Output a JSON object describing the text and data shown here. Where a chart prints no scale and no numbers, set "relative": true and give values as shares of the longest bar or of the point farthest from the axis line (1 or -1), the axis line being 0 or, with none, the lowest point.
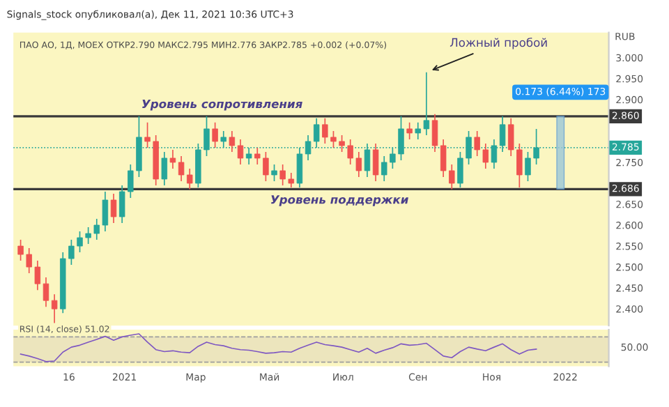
{
  "chart_data": [
    {
      "type": "candlestick",
      "title": "Signals_stock опубликовал(а), Дек 11, 2021 10:36 UTC+3",
      "subtitle": "ПАО АО, 1Д, MOEX ОТКР2.790 МАКС2.795 МИН2.776 ЗАКР2.785 +0.002 (+0.07%)",
      "ylabel": "RUB",
      "x": [
        "2020-10-07",
        "2020-10-14",
        "2020-10-21",
        "2020-10-28",
        "2020-11-04",
        "2020-11-11",
        "2020-11-18",
        "2020-11-25",
        "2020-12-02",
        "2020-12-09",
        "2020-12-16",
        "2020-12-23",
        "2020-12-30",
        "2021-01-06",
        "2021-01-13",
        "2021-01-20",
        "2021-01-27",
        "2021-02-03",
        "2021-02-10",
        "2021-02-17",
        "2021-02-24",
        "2021-03-03",
        "2021-03-10",
        "2021-03-17",
        "2021-03-24",
        "2021-03-31",
        "2021-04-07",
        "2021-04-14",
        "2021-04-21",
        "2021-04-28",
        "2021-05-05",
        "2021-05-12",
        "2021-05-19",
        "2021-05-26",
        "2021-06-02",
        "2021-06-09",
        "2021-06-16",
        "2021-06-23",
        "2021-06-30",
        "2021-07-07",
        "2021-07-14",
        "2021-07-21",
        "2021-07-28",
        "2021-08-04",
        "2021-08-11",
        "2021-08-18",
        "2021-08-25",
        "2021-09-01",
        "2021-09-08",
        "2021-09-15",
        "2021-09-22",
        "2021-09-29",
        "2021-10-06",
        "2021-10-13",
        "2021-10-20",
        "2021-10-27",
        "2021-11-03",
        "2021-11-10",
        "2021-11-17",
        "2021-11-24",
        "2021-12-01",
        "2021-12-08"
      ],
      "ohlc": [
        [
          2.55,
          2.565,
          2.515,
          2.53
        ],
        [
          2.53,
          2.545,
          2.485,
          2.5
        ],
        [
          2.5,
          2.515,
          2.445,
          2.46
        ],
        [
          2.46,
          2.475,
          2.405,
          2.42
        ],
        [
          2.42,
          2.435,
          2.366,
          2.4
        ],
        [
          2.4,
          2.535,
          2.39,
          2.52
        ],
        [
          2.52,
          2.565,
          2.505,
          2.55
        ],
        [
          2.55,
          2.585,
          2.535,
          2.57
        ],
        [
          2.57,
          2.595,
          2.555,
          2.58
        ],
        [
          2.58,
          2.615,
          2.565,
          2.6
        ],
        [
          2.6,
          2.68,
          2.585,
          2.66
        ],
        [
          2.66,
          2.675,
          2.605,
          2.62
        ],
        [
          2.62,
          2.695,
          2.605,
          2.68
        ],
        [
          2.68,
          2.745,
          2.665,
          2.73
        ],
        [
          2.73,
          2.86,
          2.715,
          2.81
        ],
        [
          2.81,
          2.845,
          2.785,
          2.8
        ],
        [
          2.8,
          2.815,
          2.695,
          2.71
        ],
        [
          2.71,
          2.775,
          2.695,
          2.76
        ],
        [
          2.76,
          2.78,
          2.735,
          2.75
        ],
        [
          2.75,
          2.765,
          2.705,
          2.72
        ],
        [
          2.72,
          2.735,
          2.686,
          2.7
        ],
        [
          2.7,
          2.795,
          2.69,
          2.78
        ],
        [
          2.78,
          2.86,
          2.765,
          2.83
        ],
        [
          2.83,
          2.845,
          2.785,
          2.8
        ],
        [
          2.8,
          2.825,
          2.785,
          2.81
        ],
        [
          2.81,
          2.825,
          2.775,
          2.79
        ],
        [
          2.79,
          2.805,
          2.745,
          2.76
        ],
        [
          2.76,
          2.785,
          2.745,
          2.77
        ],
        [
          2.77,
          2.785,
          2.745,
          2.76
        ],
        [
          2.76,
          2.775,
          2.705,
          2.72
        ],
        [
          2.72,
          2.745,
          2.705,
          2.73
        ],
        [
          2.73,
          2.745,
          2.695,
          2.71
        ],
        [
          2.71,
          2.725,
          2.69,
          2.7
        ],
        [
          2.7,
          2.785,
          2.69,
          2.77
        ],
        [
          2.77,
          2.815,
          2.755,
          2.8
        ],
        [
          2.8,
          2.855,
          2.785,
          2.84
        ],
        [
          2.84,
          2.855,
          2.795,
          2.81
        ],
        [
          2.81,
          2.825,
          2.785,
          2.8
        ],
        [
          2.8,
          2.815,
          2.775,
          2.79
        ],
        [
          2.79,
          2.805,
          2.745,
          2.76
        ],
        [
          2.76,
          2.775,
          2.715,
          2.73
        ],
        [
          2.73,
          2.795,
          2.715,
          2.78
        ],
        [
          2.78,
          2.795,
          2.705,
          2.72
        ],
        [
          2.72,
          2.765,
          2.705,
          2.75
        ],
        [
          2.75,
          2.785,
          2.735,
          2.77
        ],
        [
          2.77,
          2.86,
          2.755,
          2.83
        ],
        [
          2.83,
          2.845,
          2.805,
          2.82
        ],
        [
          2.82,
          2.845,
          2.805,
          2.83
        ],
        [
          2.83,
          2.965,
          2.815,
          2.85
        ],
        [
          2.85,
          2.865,
          2.775,
          2.79
        ],
        [
          2.79,
          2.805,
          2.715,
          2.73
        ],
        [
          2.73,
          2.745,
          2.686,
          2.7
        ],
        [
          2.7,
          2.775,
          2.69,
          2.76
        ],
        [
          2.76,
          2.825,
          2.745,
          2.81
        ],
        [
          2.81,
          2.825,
          2.765,
          2.78
        ],
        [
          2.78,
          2.795,
          2.735,
          2.75
        ],
        [
          2.75,
          2.805,
          2.735,
          2.79
        ],
        [
          2.79,
          2.86,
          2.775,
          2.84
        ],
        [
          2.84,
          2.855,
          2.765,
          2.78
        ],
        [
          2.78,
          2.795,
          2.69,
          2.72
        ],
        [
          2.72,
          2.775,
          2.705,
          2.76
        ],
        [
          2.76,
          2.83,
          2.745,
          2.785
        ]
      ],
      "colors": [
        "#ef5350",
        "#ef5350",
        "#ef5350",
        "#ef5350",
        "#ef5350",
        "#26a69a",
        "#26a69a",
        "#26a69a",
        "#26a69a",
        "#26a69a",
        "#26a69a",
        "#ef5350",
        "#26a69a",
        "#26a69a",
        "#26a69a",
        "#ef5350",
        "#ef5350",
        "#26a69a",
        "#ef5350",
        "#ef5350",
        "#ef5350",
        "#26a69a",
        "#26a69a",
        "#ef5350",
        "#26a69a",
        "#ef5350",
        "#ef5350",
        "#26a69a",
        "#ef5350",
        "#ef5350",
        "#26a69a",
        "#ef5350",
        "#ef5350",
        "#26a69a",
        "#26a69a",
        "#26a69a",
        "#ef5350",
        "#ef5350",
        "#ef5350",
        "#ef5350",
        "#ef5350",
        "#26a69a",
        "#ef5350",
        "#26a69a",
        "#26a69a",
        "#26a69a",
        "#ef5350",
        "#26a69a",
        "#26a69a",
        "#ef5350",
        "#ef5350",
        "#ef5350",
        "#26a69a",
        "#26a69a",
        "#ef5350",
        "#ef5350",
        "#26a69a",
        "#26a69a",
        "#ef5350",
        "#ef5350",
        "#26a69a",
        "#26a69a"
      ],
      "xlim": [
        "2020-10-01",
        "2022-02-06"
      ],
      "xticks": [
        {
          "value": "2020-11-16",
          "label": null
        },
        {
          "value": "2021-01-01",
          "label": null
        },
        {
          "value": "2021-03-01",
          "label": null
        },
        {
          "value": "2021-05-01",
          "label": null
        },
        {
          "value": "2021-07-01",
          "label": null
        },
        {
          "value": "2021-09-01",
          "label": null
        },
        {
          "value": "2021-11-01",
          "label": null
        },
        {
          "value": "2022-01-01",
          "label": null
        }
      ],
      "ylim": [
        2.36,
        3.06
      ],
      "yticks": [
        {
          "value": 2.4,
          "label": "2.400"
        },
        {
          "value": 2.45,
          "label": "2.450"
        },
        {
          "value": 2.5,
          "label": "2.500"
        },
        {
          "value": 2.55,
          "label": "2.550"
        },
        {
          "value": 2.6,
          "label": "2.600"
        },
        {
          "value": 2.65,
          "label": "2.650"
        },
        {
          "value": 2.75,
          "label": "2.750"
        },
        {
          "value": 2.9,
          "label": "2.900"
        },
        {
          "value": 2.95,
          "label": "2.950"
        },
        {
          "value": 3.0,
          "label": "3.000"
        }
      ],
      "tick_labels": "y",
      "grid": false,
      "ref_lines": [
        {
          "axis": "y",
          "value": 2.86,
          "label": "2.860",
          "color": "#3a3a3a"
        },
        {
          "axis": "y",
          "value": 2.785,
          "label": "2.785",
          "color": "#26a69a",
          "line_style": "dotted"
        },
        {
          "axis": "y",
          "value": 2.686,
          "label": "2.686",
          "color": "#3a3a3a"
        }
      ],
      "annotations": [
        {
          "text": "Уровень сопротивления",
          "x": "2021-01-15",
          "y": 2.86
        },
        {
          "text": "Уровень поддержки",
          "x": "2021-06-28",
          "y": 2.686
        },
        {
          "text": "Ложный пробой",
          "x": "2021-09-08",
          "y": 2.965
        },
        {
          "text": "0.173 (6.44%) 173",
          "x": "2021-12-28",
          "y": 2.86
        }
      ]
    },
    {
      "type": "line",
      "title": "RSI (14, close) 51.02",
      "x": [
        "2020-10-07",
        "2020-10-14",
        "2020-10-21",
        "2020-10-28",
        "2020-11-04",
        "2020-11-11",
        "2020-11-18",
        "2020-11-25",
        "2020-12-02",
        "2020-12-09",
        "2020-12-16",
        "2020-12-23",
        "2020-12-30",
        "2021-01-06",
        "2021-01-13",
        "2021-01-20",
        "2021-01-27",
        "2021-02-03",
        "2021-02-10",
        "2021-02-17",
        "2021-02-24",
        "2021-03-03",
        "2021-03-10",
        "2021-03-17",
        "2021-03-24",
        "2021-03-31",
        "2021-04-07",
        "2021-04-14",
        "2021-04-21",
        "2021-04-28",
        "2021-05-05",
        "2021-05-12",
        "2021-05-19",
        "2021-05-26",
        "2021-06-02",
        "2021-06-09",
        "2021-06-16",
        "2021-06-23",
        "2021-06-30",
        "2021-07-07",
        "2021-07-14",
        "2021-07-21",
        "2021-07-28",
        "2021-08-04",
        "2021-08-11",
        "2021-08-18",
        "2021-08-25",
        "2021-09-01",
        "2021-09-08",
        "2021-09-15",
        "2021-09-22",
        "2021-09-29",
        "2021-10-06",
        "2021-10-13",
        "2021-10-20",
        "2021-10-27",
        "2021-11-03",
        "2021-11-10",
        "2021-11-17",
        "2021-11-24",
        "2021-12-01",
        "2021-12-08"
      ],
      "relative": true,
      "series": [
        {
          "color": "#7e57c2",
          "values": [
            0.27,
            0.2,
            0.11,
            0,
            0.02,
            0.34,
            0.52,
            0.59,
            0.7,
            0.8,
            0.91,
            0.77,
            0.89,
            0.95,
            1,
            0.7,
            0.43,
            0.36,
            0.39,
            0.34,
            0.32,
            0.55,
            0.7,
            0.61,
            0.57,
            0.48,
            0.43,
            0.41,
            0.36,
            0.3,
            0.32,
            0.36,
            0.34,
            0.48,
            0.59,
            0.7,
            0.61,
            0.57,
            0.52,
            0.43,
            0.34,
            0.48,
            0.3,
            0.41,
            0.5,
            0.64,
            0.59,
            0.61,
            0.66,
            0.43,
            0.2,
            0.14,
            0.36,
            0.52,
            0.45,
            0.39,
            0.52,
            0.64,
            0.43,
            0.27,
            0.41,
            0.45
          ]
        }
      ],
      "annotations": [
        "50.00"
      ],
      "xlim": [
        "2020-10-01",
        "2022-02-06"
      ],
      "xticks": [
        {
          "value": "2020-11-16",
          "label": "16"
        },
        {
          "value": "2021-01-01",
          "label": "2021"
        },
        {
          "value": "2021-03-01",
          "label": "Мар"
        },
        {
          "value": "2021-05-01",
          "label": "Май"
        },
        {
          "value": "2021-07-01",
          "label": "Июл"
        },
        {
          "value": "2021-09-01",
          "label": "Сен"
        },
        {
          "value": "2021-11-01",
          "label": "Ноя"
        },
        {
          "value": "2022-01-01",
          "label": "2022"
        }
      ],
      "grid": false,
      "ref_lines": [
        {
          "axis": "y",
          "value": 0.89,
          "label": null,
          "color": "#9e9e9e",
          "line_style": "dashed"
        },
        {
          "axis": "y",
          "value": -0.02,
          "label": null,
          "color": "#9e9e9e",
          "line_style": "dashed"
        }
      ],
      "bands": [
        {
          "axis": "y",
          "from": -0.02,
          "to": 0.89,
          "color": "#ece5bd"
        }
      ]
    }
  ]
}
